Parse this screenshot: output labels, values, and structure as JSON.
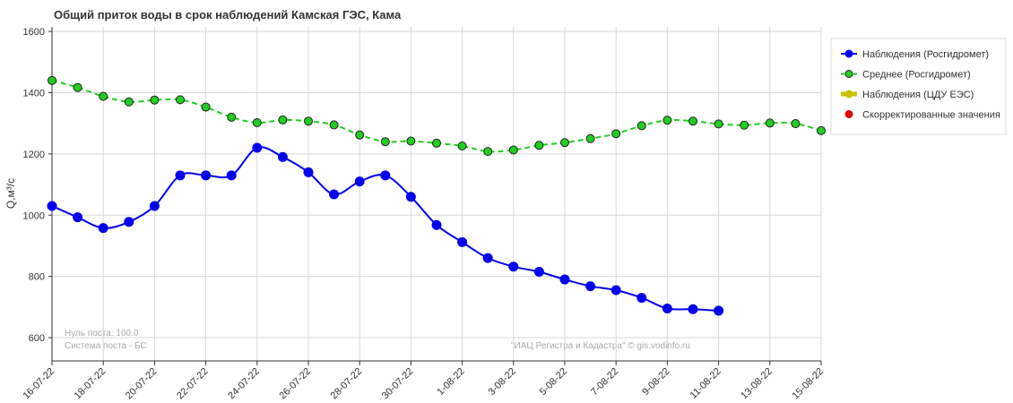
{
  "chart_data": {
    "type": "line",
    "title": "Общий приток воды в срок наблюдений Камская ГЭС,  Кама",
    "y_label": "Q,м³/с",
    "annotations": [
      "Нуль поста: 100.0",
      "Система поста - БС",
      "\"ИАЦ Регистра и Кадастра\" © gis.vodinfo.ru"
    ],
    "categories": [
      "16-07-22",
      null,
      "18-07-22",
      null,
      "20-07-22",
      null,
      "22-07-22",
      null,
      "24-07-22",
      null,
      "26-07-22",
      null,
      "28-07-22",
      null,
      "30-07-22",
      null,
      "1-08-22",
      null,
      "3-08-22",
      null,
      "5-08-22",
      null,
      "7-08-22",
      null,
      "9-08-22",
      null,
      "11-08-22",
      null,
      "13-08-22",
      null,
      "15-08-22"
    ],
    "series": [
      {
        "name": "Наблюдения (Росгидромет)",
        "color": "#0000ee",
        "dash": false,
        "values": [
          1030,
          993,
          958,
          978,
          1030,
          1130,
          1130,
          1130,
          1220,
          1190,
          1140,
          1068,
          1110,
          1130,
          1060,
          968,
          912,
          860,
          832,
          815,
          790,
          768,
          755,
          730,
          695,
          693,
          688,
          null,
          null,
          null,
          null
        ]
      },
      {
        "name": "Среднее (Росгидромет)",
        "color": "#22cc22",
        "dash": true,
        "values": [
          1440,
          1417,
          1388,
          1370,
          1376,
          1377,
          1353,
          1320,
          1302,
          1311,
          1307,
          1295,
          1262,
          1240,
          1242,
          1235,
          1226,
          1208,
          1213,
          1228,
          1237,
          1250,
          1266,
          1292,
          1310,
          1307,
          1298,
          1294,
          1301,
          1299,
          1276
        ]
      },
      {
        "name": "Наблюдения (ЦДУ ЕЭС)",
        "color": "#c8c000",
        "dash": false,
        "values": [
          null,
          null,
          null,
          null,
          null,
          null,
          null,
          null,
          null,
          null,
          null,
          null,
          null,
          null,
          null,
          null,
          null,
          null,
          null,
          null,
          null,
          null,
          null,
          null,
          null,
          null,
          null,
          null,
          null,
          null,
          null
        ]
      },
      {
        "name": "Скорректированные значения",
        "color": "#dd0000",
        "dash": false,
        "values": [
          null,
          null,
          null,
          null,
          null,
          null,
          null,
          null,
          null,
          null,
          null,
          null,
          null,
          null,
          null,
          null,
          null,
          null,
          null,
          null,
          null,
          null,
          null,
          null,
          null,
          null,
          null,
          null,
          null,
          null,
          null
        ]
      }
    ],
    "ylim": [
      524,
      1615
    ],
    "yticks": [
      600,
      800,
      1000,
      1200,
      1400,
      1600
    ],
    "grid": true
  }
}
